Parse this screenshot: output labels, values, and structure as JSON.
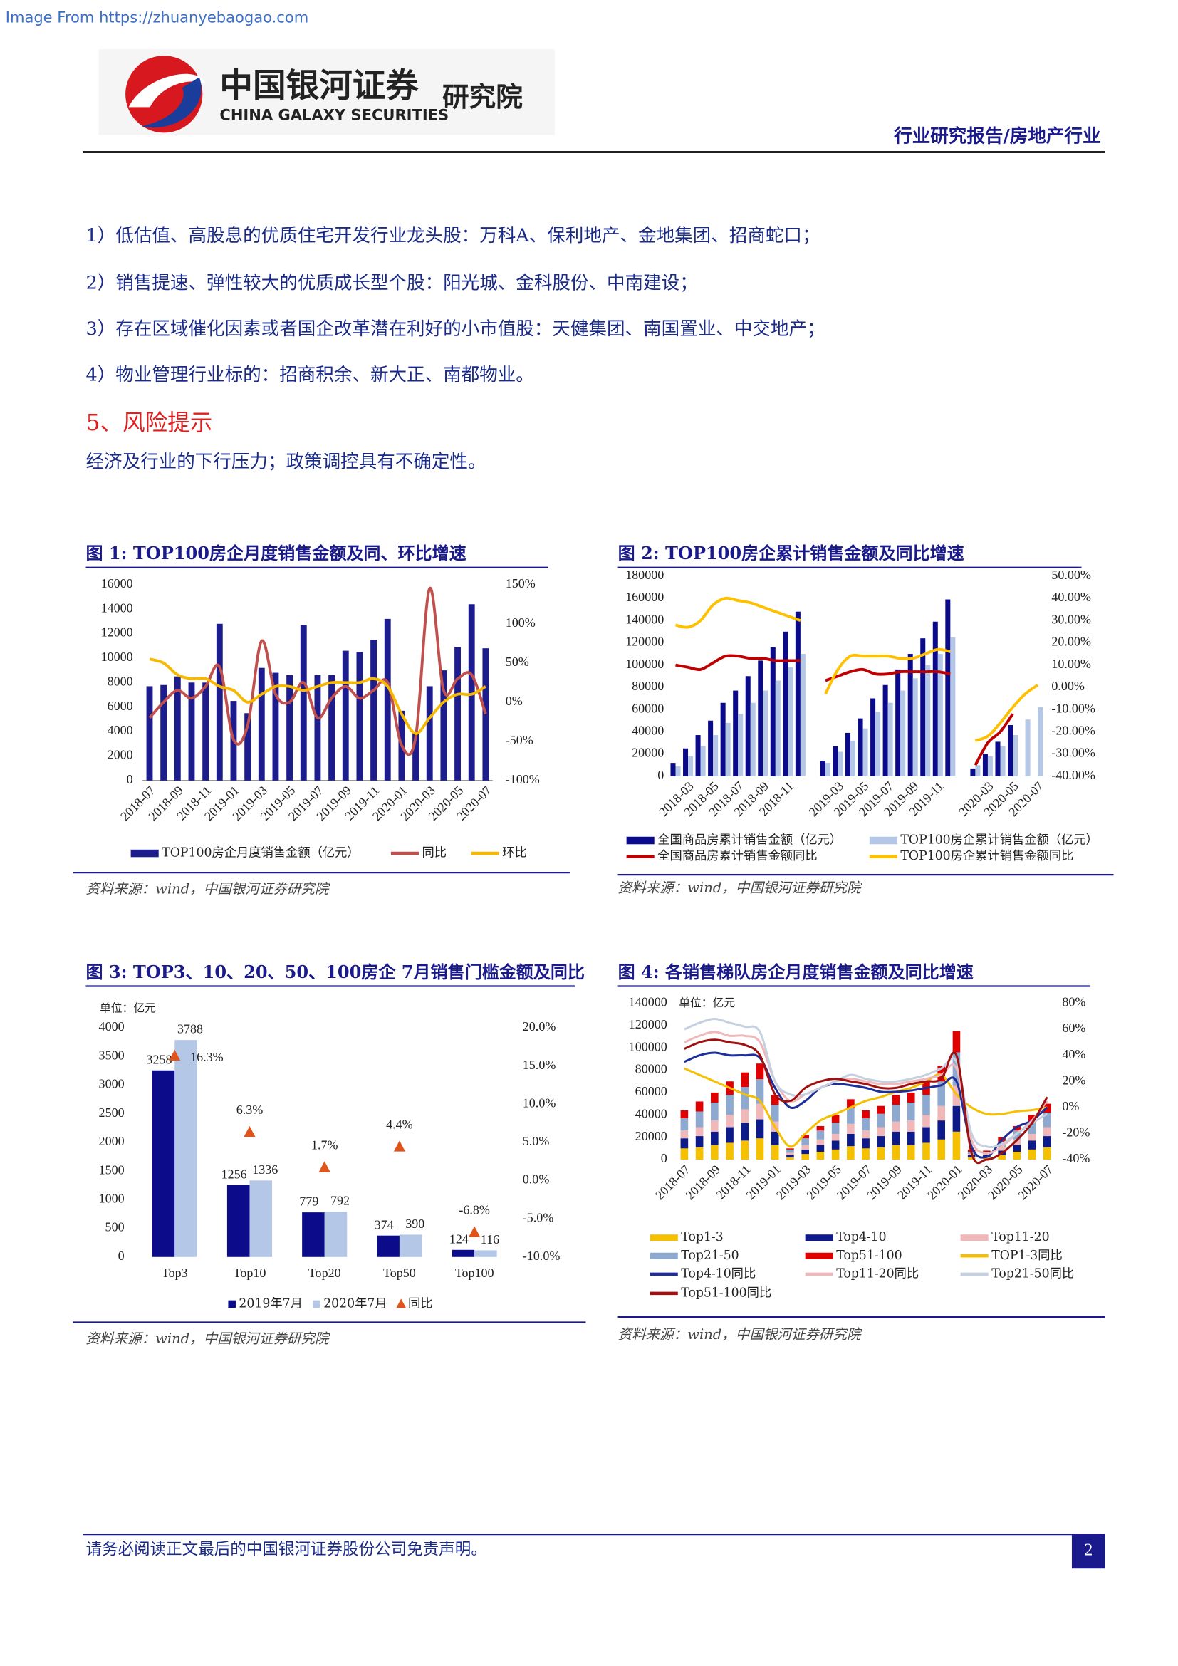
{
  "header": {
    "watermark": "Image From https://zhuanyebaogao.com",
    "logo_cn": "中国银河证券",
    "logo_en": "CHINA GALAXY SECURITIES",
    "logo_suffix": "研究院",
    "report_type": "行业研究报告/房地产行业"
  },
  "body": {
    "items": [
      "1）低估值、高股息的优质住宅开发行业龙头股：万科A、保利地产、金地集团、招商蛇口；",
      "2）销售提速、弹性较大的优质成长型个股：阳光城、金科股份、中南建设；",
      "3）存在区域催化因素或者国企改革潜在利好的小市值股：天健集团、南国置业、中交地产；",
      "4）物业管理行业标的：招商积余、新大正、南都物业。"
    ],
    "section_title": "5、风险提示",
    "paragraph": "经济及行业的下行压力；政策调控具有不确定性。"
  },
  "chart_data": [
    {
      "type": "combo",
      "title": "图 1: TOP100房企月度销售金额及同、环比增速",
      "source": "资料来源：wind，中国银河证券研究院",
      "categories": [
        "2018-07",
        null,
        "2018-09",
        null,
        "2018-11",
        null,
        "2019-01",
        null,
        "2019-03",
        null,
        "2019-05",
        null,
        "2019-07",
        null,
        "2019-09",
        null,
        "2019-11",
        null,
        "2020-01",
        null,
        "2020-03",
        null,
        "2020-05",
        null,
        "2020-07"
      ],
      "series": [
        {
          "name": "TOP100房企月度销售金额（亿元）",
          "kind": "bar",
          "color": "#1c1c8c",
          "values": [
            7700,
            7800,
            8500,
            8000,
            8000,
            12800,
            6500,
            5500,
            9200,
            8800,
            8600,
            12700,
            8600,
            8600,
            10600,
            10500,
            11500,
            13200,
            5700,
            4000,
            7700,
            9000,
            10900,
            14400,
            10800
          ]
        },
        {
          "name": "同比",
          "kind": "line",
          "axis": "y2",
          "color": "#c0504d",
          "values": [
            -20,
            0,
            15,
            5,
            20,
            45,
            -48,
            -30,
            78,
            10,
            0,
            25,
            -20,
            5,
            20,
            5,
            15,
            25,
            -55,
            -45,
            145,
            15,
            30,
            35,
            -15
          ]
        },
        {
          "name": "环比",
          "kind": "line",
          "axis": "y2",
          "color": "#f6b800",
          "values": [
            55,
            50,
            35,
            30,
            30,
            20,
            15,
            0,
            10,
            20,
            20,
            15,
            20,
            25,
            25,
            25,
            30,
            20,
            -15,
            -40,
            -20,
            0,
            10,
            10,
            20
          ]
        }
      ],
      "ylim": [
        0,
        16000
      ],
      "yticks": [
        0,
        2000,
        4000,
        6000,
        8000,
        10000,
        12000,
        14000,
        16000
      ],
      "y2lim": [
        -100,
        150
      ],
      "y2ticks": [
        {
          "value": -100,
          "label": "-100%"
        },
        {
          "value": -50,
          "label": "-50%"
        },
        {
          "value": 0,
          "label": "0%"
        },
        {
          "value": 50,
          "label": "50%"
        },
        {
          "value": 100,
          "label": "100%"
        },
        {
          "value": 150,
          "label": "150%"
        }
      ],
      "grid": false
    },
    {
      "type": "combo",
      "title": "图 2: TOP100房企累计销售金额及同比增速",
      "source": "资料来源：wind，中国银河证券研究院",
      "categories": [
        null,
        "2018-03",
        null,
        "2018-05",
        null,
        "2018-07",
        null,
        "2018-09",
        null,
        "2018-11",
        null,
        null,
        null,
        "2019-03",
        null,
        "2019-05",
        null,
        "2019-07",
        null,
        "2019-09",
        null,
        "2019-11",
        null,
        null,
        null,
        "2020-03",
        null,
        "2020-05",
        null,
        "2020-07"
      ],
      "series": [
        {
          "name": "全国商品房累计销售金额（亿元）",
          "kind": "bar",
          "color": "#0a0a8a",
          "values": [
            12000,
            25000,
            37000,
            50000,
            66000,
            77000,
            90000,
            104000,
            116000,
            130000,
            148000,
            null,
            14000,
            27000,
            39000,
            52000,
            70000,
            82000,
            96000,
            110000,
            124000,
            139000,
            159000,
            null,
            7000,
            20000,
            31000,
            46000,
            null,
            null
          ]
        },
        {
          "name": "TOP100房企累计销售金额（亿元）",
          "kind": "bar",
          "color": "#b4c7e7",
          "values": [
            9000,
            18000,
            27000,
            37000,
            48000,
            56000,
            66000,
            77000,
            86000,
            98000,
            110000,
            null,
            12000,
            22000,
            32000,
            43000,
            58000,
            66000,
            77000,
            88000,
            100000,
            110000,
            125000,
            null,
            10000,
            18000,
            27000,
            37000,
            51000,
            62000
          ]
        },
        {
          "name": "全国商品房累计销售金额同比",
          "kind": "line",
          "axis": "y2",
          "color": "#c00000",
          "values": [
            10,
            9,
            8,
            11,
            14,
            14,
            13,
            13,
            12,
            12,
            12,
            null,
            3,
            5,
            7,
            8,
            6,
            6,
            7,
            7,
            7,
            7,
            6,
            null,
            -35,
            -25,
            -20,
            -12,
            null,
            null
          ]
        },
        {
          "name": "TOP100房企累计销售金额同比",
          "kind": "line",
          "axis": "y2",
          "color": "#ffc000",
          "values": [
            28,
            27,
            30,
            37,
            40,
            39,
            38,
            36,
            34,
            32,
            30,
            null,
            -3,
            8,
            14,
            14,
            14,
            14,
            13,
            13,
            15,
            17,
            16,
            null,
            -24,
            -22,
            -16,
            -9,
            -3,
            1
          ]
        }
      ],
      "ylim": [
        0,
        180000
      ],
      "yticks": [
        0,
        20000,
        40000,
        60000,
        80000,
        100000,
        120000,
        140000,
        160000,
        180000
      ],
      "y2lim": [
        -40,
        50
      ],
      "y2ticks": [
        {
          "value": -40,
          "label": "-40.00%"
        },
        {
          "value": -30,
          "label": "-30.00%"
        },
        {
          "value": -20,
          "label": "-20.00%"
        },
        {
          "value": -10,
          "label": "-10.00%"
        },
        {
          "value": 0,
          "label": "0.00%"
        },
        {
          "value": 10,
          "label": "10.00%"
        },
        {
          "value": 20,
          "label": "20.00%"
        },
        {
          "value": 30,
          "label": "30.00%"
        },
        {
          "value": 40,
          "label": "40.00%"
        },
        {
          "value": 50,
          "label": "50.00%"
        }
      ],
      "grid": false
    },
    {
      "type": "combo",
      "title": "图 3: TOP3、10、20、50、100房企 7月销售门槛金额及同比",
      "source": "资料来源：wind，中国银河证券研究院",
      "unit_label": "单位：亿元",
      "data_labels": true,
      "categories": [
        "Top3",
        "Top10",
        "Top20",
        "Top50",
        "Top100"
      ],
      "series": [
        {
          "name": "2019年7月",
          "kind": "bar",
          "color": "#0c0c8a",
          "values": [
            3258,
            1256,
            779,
            374,
            124
          ]
        },
        {
          "name": "2020年7月",
          "kind": "bar",
          "color": "#b4c7e7",
          "values": [
            3788,
            1336,
            792,
            390,
            116
          ]
        },
        {
          "name": "同比",
          "kind": "marker",
          "axis": "y2",
          "color": "#e0541a",
          "values": [
            16.3,
            6.3,
            1.7,
            4.4,
            -6.8
          ],
          "value_labels": [
            "16.3%",
            "6.3%",
            "1.7%",
            "4.4%",
            "-6.8%"
          ]
        }
      ],
      "ylim": [
        0,
        4000
      ],
      "yticks": [
        0,
        500,
        1000,
        1500,
        2000,
        2500,
        3000,
        3500,
        4000
      ],
      "y2lim": [
        -10,
        20
      ],
      "y2ticks": [
        {
          "value": -10,
          "label": "-10.0%"
        },
        {
          "value": -5,
          "label": "-5.0%"
        },
        {
          "value": 0,
          "label": "0.0%"
        },
        {
          "value": 5,
          "label": "5.0%"
        },
        {
          "value": 10,
          "label": "10.0%"
        },
        {
          "value": 15,
          "label": "15.0%"
        },
        {
          "value": 20,
          "label": "20.0%"
        }
      ],
      "grid": false
    },
    {
      "type": "stacked",
      "title": "图 4: 各销售梯队房企月度销售金额及同比增速",
      "source": "资料来源：wind，中国银河证券研究院",
      "unit_label": "单位：亿元",
      "categories": [
        "2018-07",
        null,
        "2018-09",
        null,
        "2018-11",
        null,
        "2019-01",
        null,
        "2019-03",
        null,
        "2019-05",
        null,
        "2019-07",
        null,
        "2019-09",
        null,
        "2019-11",
        null,
        "2020-01",
        null,
        "2020-03",
        null,
        "2020-05",
        null,
        "2020-07"
      ],
      "series": [
        {
          "name": "Top1-3",
          "kind": "bar",
          "color": "#f5c000",
          "values": [
            10000,
            11000,
            13000,
            15000,
            17000,
            19000,
            13000,
            2000,
            5000,
            7000,
            9000,
            12000,
            10000,
            11000,
            13000,
            13000,
            15000,
            18000,
            25000,
            2000,
            2000,
            4000,
            7000,
            9000,
            11000
          ]
        },
        {
          "name": "Top4-10",
          "kind": "bar",
          "color": "#0c1a8a",
          "values": [
            9000,
            10000,
            12000,
            14000,
            16000,
            17000,
            12000,
            2000,
            4000,
            6000,
            8000,
            11000,
            9000,
            10000,
            12000,
            12000,
            14000,
            17000,
            23000,
            2000,
            2000,
            4000,
            6000,
            8000,
            10000
          ]
        },
        {
          "name": "Top11-20",
          "kind": "bar",
          "color": "#f0b8b8",
          "values": [
            7000,
            8000,
            10000,
            11000,
            12000,
            14000,
            9000,
            2000,
            4000,
            5000,
            6000,
            9000,
            7000,
            8000,
            9000,
            10000,
            11000,
            13000,
            18000,
            1000,
            1000,
            3000,
            5000,
            6000,
            8000
          ]
        },
        {
          "name": "Top21-50",
          "kind": "bar",
          "color": "#8ea9d0",
          "values": [
            11000,
            14000,
            16000,
            18000,
            20000,
            22000,
            15000,
            3000,
            6000,
            8000,
            10000,
            14000,
            11000,
            12000,
            15000,
            16000,
            18000,
            22000,
            30000,
            2000,
            2000,
            5000,
            8000,
            10000,
            13000
          ]
        },
        {
          "name": "Top51-100",
          "kind": "bar",
          "color": "#e00000",
          "values": [
            7000,
            9000,
            9000,
            12000,
            13000,
            14000,
            9000,
            1000,
            3000,
            4000,
            7000,
            8000,
            7000,
            7000,
            9000,
            9000,
            12000,
            14000,
            19000,
            2000,
            1000,
            4000,
            4000,
            7000,
            8000
          ]
        },
        {
          "name": "TOP1-3同比",
          "kind": "line",
          "axis": "y2",
          "color": "#f5c000",
          "values": [
            30,
            25,
            20,
            15,
            10,
            5,
            -15,
            -30,
            -20,
            -10,
            -5,
            0,
            5,
            8,
            12,
            15,
            20,
            25,
            10,
            0,
            -5,
            -5,
            -3,
            -2,
            0
          ]
        },
        {
          "name": "Top4-10同比",
          "kind": "line",
          "axis": "y2",
          "color": "#1f2f9a",
          "values": [
            35,
            40,
            42,
            40,
            40,
            38,
            15,
            0,
            5,
            15,
            18,
            17,
            15,
            12,
            12,
            13,
            15,
            17,
            20,
            -30,
            -38,
            -25,
            -15,
            -10,
            0
          ]
        },
        {
          "name": "Top11-20同比",
          "kind": "line",
          "axis": "y2",
          "color": "#f0b8b8",
          "values": [
            50,
            55,
            58,
            55,
            55,
            50,
            20,
            5,
            10,
            15,
            20,
            22,
            20,
            18,
            18,
            20,
            22,
            25,
            30,
            -25,
            -35,
            -30,
            -20,
            -10,
            5
          ]
        },
        {
          "name": "Top21-50同比",
          "kind": "line",
          "axis": "y2",
          "color": "#c5d0e0",
          "values": [
            60,
            65,
            68,
            65,
            62,
            58,
            20,
            10,
            10,
            15,
            20,
            25,
            22,
            20,
            20,
            22,
            25,
            30,
            35,
            -20,
            -30,
            -28,
            -20,
            -12,
            -5
          ]
        },
        {
          "name": "Top51-100同比",
          "kind": "line",
          "axis": "y2",
          "color": "#a01010",
          "values": [
            45,
            50,
            52,
            50,
            48,
            40,
            10,
            5,
            15,
            20,
            22,
            20,
            18,
            15,
            15,
            18,
            20,
            22,
            40,
            -35,
            -40,
            -35,
            -25,
            -12,
            8
          ]
        }
      ],
      "ylim": [
        0,
        140000
      ],
      "yticks": [
        0,
        20000,
        40000,
        60000,
        80000,
        100000,
        120000,
        140000
      ],
      "y2lim": [
        -40,
        80
      ],
      "y2ticks": [
        {
          "value": -40,
          "label": "-40%"
        },
        {
          "value": -20,
          "label": "-20%"
        },
        {
          "value": 0,
          "label": "0%"
        },
        {
          "value": 20,
          "label": "20%"
        },
        {
          "value": 40,
          "label": "40%"
        },
        {
          "value": 60,
          "label": "60%"
        },
        {
          "value": 80,
          "label": "80%"
        }
      ],
      "grid": false
    }
  ],
  "footer": {
    "disclaimer": "请务必阅读正文最后的中国银河证券股份公司免责声明。",
    "page_number": "2"
  }
}
